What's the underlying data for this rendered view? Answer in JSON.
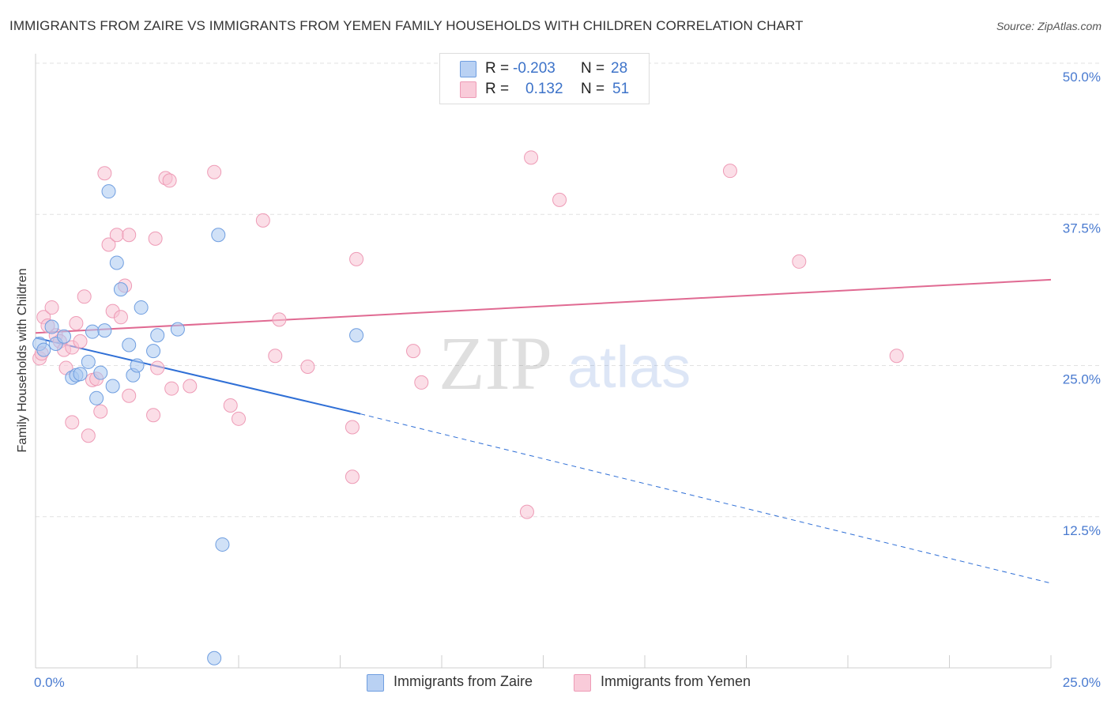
{
  "title": "IMMIGRANTS FROM ZAIRE VS IMMIGRANTS FROM YEMEN FAMILY HOUSEHOLDS WITH CHILDREN CORRELATION CHART",
  "source": "Source: ZipAtlas.com",
  "legend": {
    "rows": [
      {
        "r_label": "R =",
        "r_value": "-0.203",
        "n_label": "N =",
        "n_value": "28"
      },
      {
        "r_label": "R =",
        "r_value": "0.132",
        "n_label": "N =",
        "n_value": "51"
      }
    ]
  },
  "watermark": {
    "zip": "ZIP",
    "atlas": "atlas"
  },
  "chart_data": {
    "type": "scatter",
    "title": "IMMIGRANTS FROM ZAIRE VS IMMIGRANTS FROM YEMEN FAMILY HOUSEHOLDS WITH CHILDREN CORRELATION CHART",
    "xlabel": "",
    "ylabel": "Family Households with Children",
    "xlim": [
      0,
      25
    ],
    "ylim": [
      0,
      50
    ],
    "x_tick_labels": [
      "0.0%",
      "25.0%"
    ],
    "y_tick_labels": [
      "12.5%",
      "25.0%",
      "37.5%",
      "50.0%"
    ],
    "y_ticks": [
      12.5,
      25.0,
      37.5,
      50.0
    ],
    "grid": true,
    "legend_position": "bottom",
    "series": [
      {
        "name": "Immigrants from Zaire",
        "color": "#aac8f0",
        "stroke": "#6f9ee0",
        "line_color": "#2f6fd6",
        "R": -0.203,
        "N": 28,
        "trend": {
          "x_start": 0.0,
          "y_start": 27.3,
          "x_solid_end": 8.0,
          "y_solid_end": 21.0,
          "x_end": 25.0,
          "y_end": 7.0
        },
        "points": [
          {
            "x": 0.1,
            "y": 26.8
          },
          {
            "x": 0.2,
            "y": 26.3
          },
          {
            "x": 0.4,
            "y": 28.2
          },
          {
            "x": 0.5,
            "y": 26.8
          },
          {
            "x": 0.7,
            "y": 27.4
          },
          {
            "x": 0.9,
            "y": 24.0
          },
          {
            "x": 1.0,
            "y": 24.2
          },
          {
            "x": 1.1,
            "y": 24.3
          },
          {
            "x": 1.3,
            "y": 25.3
          },
          {
            "x": 1.4,
            "y": 27.8
          },
          {
            "x": 1.5,
            "y": 22.3
          },
          {
            "x": 1.7,
            "y": 27.9
          },
          {
            "x": 1.8,
            "y": 39.4
          },
          {
            "x": 1.9,
            "y": 23.3
          },
          {
            "x": 2.0,
            "y": 33.5
          },
          {
            "x": 2.1,
            "y": 31.3
          },
          {
            "x": 2.3,
            "y": 26.7
          },
          {
            "x": 2.4,
            "y": 24.2
          },
          {
            "x": 2.5,
            "y": 25.0
          },
          {
            "x": 2.6,
            "y": 29.8
          },
          {
            "x": 2.9,
            "y": 26.2
          },
          {
            "x": 3.0,
            "y": 27.5
          },
          {
            "x": 3.5,
            "y": 28.0
          },
          {
            "x": 4.5,
            "y": 35.8
          },
          {
            "x": 4.6,
            "y": 10.2
          },
          {
            "x": 4.4,
            "y": 0.8
          },
          {
            "x": 7.9,
            "y": 27.5
          },
          {
            "x": 1.6,
            "y": 24.4
          }
        ]
      },
      {
        "name": "Immigrants from Yemen",
        "color": "#f7c3d3",
        "stroke": "#ee9bb6",
        "line_color": "#e06a92",
        "R": 0.132,
        "N": 51,
        "trend": {
          "x_start": 0.0,
          "y_start": 27.7,
          "x_end": 25.0,
          "y_end": 32.1
        },
        "points": [
          {
            "x": 0.1,
            "y": 25.6
          },
          {
            "x": 0.2,
            "y": 29.0
          },
          {
            "x": 0.4,
            "y": 29.8
          },
          {
            "x": 0.5,
            "y": 27.5
          },
          {
            "x": 0.6,
            "y": 27.0
          },
          {
            "x": 0.7,
            "y": 26.3
          },
          {
            "x": 0.75,
            "y": 24.8
          },
          {
            "x": 0.9,
            "y": 26.5
          },
          {
            "x": 0.9,
            "y": 20.3
          },
          {
            "x": 1.0,
            "y": 28.5
          },
          {
            "x": 1.1,
            "y": 27.0
          },
          {
            "x": 1.2,
            "y": 30.7
          },
          {
            "x": 1.3,
            "y": 19.2
          },
          {
            "x": 1.4,
            "y": 23.8
          },
          {
            "x": 1.5,
            "y": 23.9
          },
          {
            "x": 1.6,
            "y": 21.2
          },
          {
            "x": 1.7,
            "y": 40.9
          },
          {
            "x": 1.8,
            "y": 35.0
          },
          {
            "x": 1.9,
            "y": 29.5
          },
          {
            "x": 2.0,
            "y": 35.8
          },
          {
            "x": 2.1,
            "y": 29.0
          },
          {
            "x": 2.2,
            "y": 31.6
          },
          {
            "x": 2.3,
            "y": 22.5
          },
          {
            "x": 2.3,
            "y": 35.8
          },
          {
            "x": 2.9,
            "y": 20.9
          },
          {
            "x": 2.95,
            "y": 35.5
          },
          {
            "x": 3.0,
            "y": 24.8
          },
          {
            "x": 3.2,
            "y": 40.5
          },
          {
            "x": 3.3,
            "y": 40.3
          },
          {
            "x": 3.35,
            "y": 23.1
          },
          {
            "x": 3.8,
            "y": 23.3
          },
          {
            "x": 4.4,
            "y": 41.0
          },
          {
            "x": 4.8,
            "y": 21.7
          },
          {
            "x": 5.0,
            "y": 20.6
          },
          {
            "x": 5.6,
            "y": 37.0
          },
          {
            "x": 5.9,
            "y": 25.8
          },
          {
            "x": 6.0,
            "y": 28.8
          },
          {
            "x": 6.7,
            "y": 24.9
          },
          {
            "x": 7.8,
            "y": 19.9
          },
          {
            "x": 7.8,
            "y": 15.8
          },
          {
            "x": 7.9,
            "y": 33.8
          },
          {
            "x": 9.3,
            "y": 26.2
          },
          {
            "x": 9.5,
            "y": 23.6
          },
          {
            "x": 12.2,
            "y": 42.2
          },
          {
            "x": 12.9,
            "y": 38.7
          },
          {
            "x": 12.1,
            "y": 12.9
          },
          {
            "x": 17.1,
            "y": 41.1
          },
          {
            "x": 18.8,
            "y": 33.6
          },
          {
            "x": 21.2,
            "y": 25.8
          },
          {
            "x": 0.3,
            "y": 28.3
          },
          {
            "x": 0.15,
            "y": 26.0
          }
        ]
      }
    ]
  }
}
